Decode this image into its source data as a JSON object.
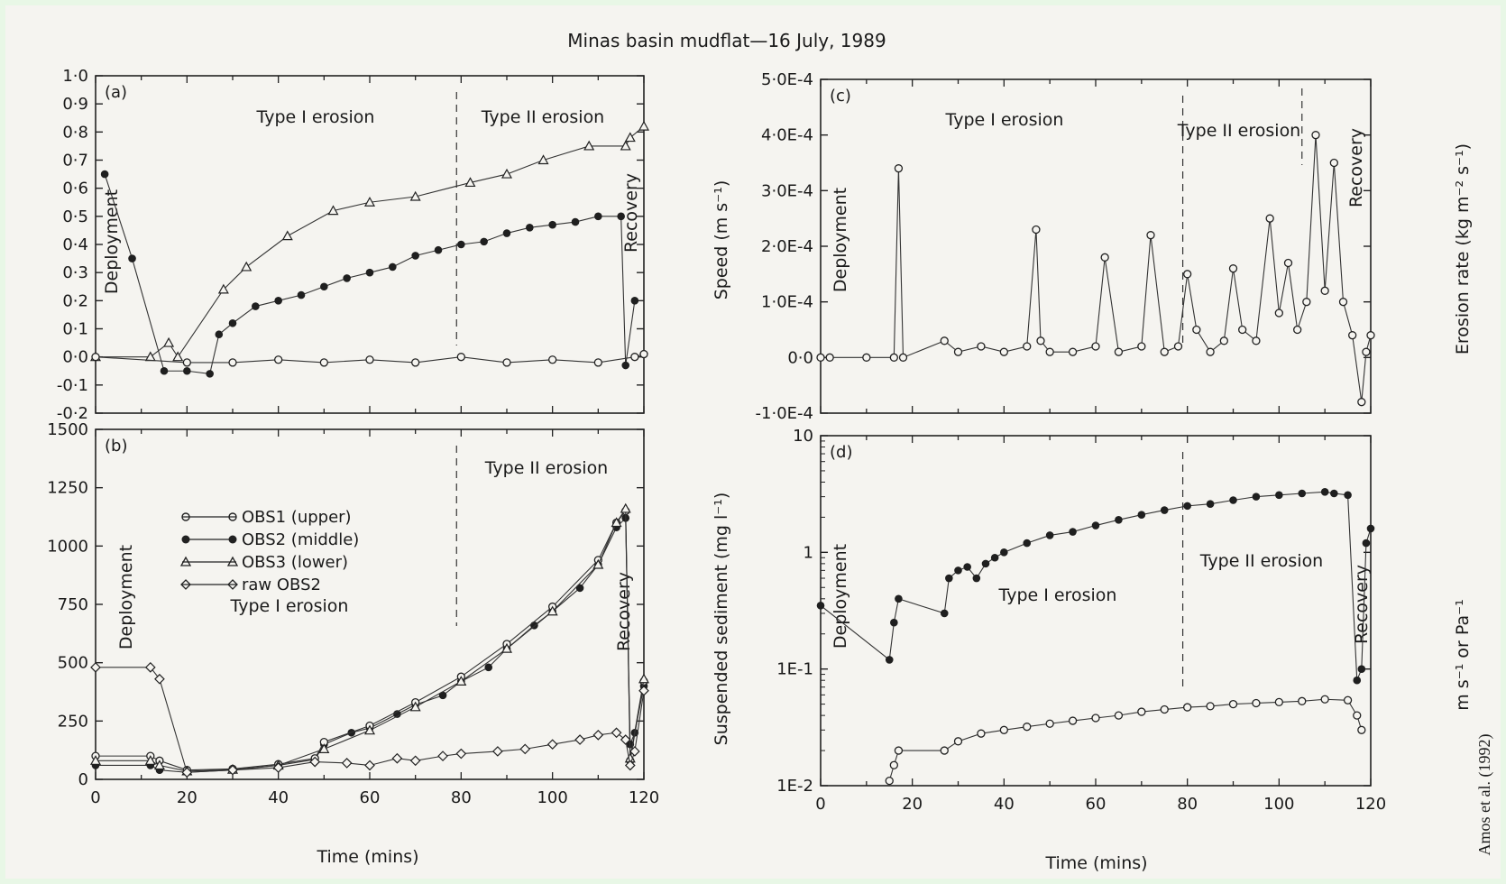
{
  "title": "Minas basin mudflat—16 July, 1989",
  "credit": "Amos et al. (1992)",
  "legend": [
    {
      "label": "OBS1 (upper)",
      "marker": "open-circle"
    },
    {
      "label": "OBS2 (middle)",
      "marker": "filled-circle"
    },
    {
      "label": "OBS3 (lower)",
      "marker": "open-triangle"
    },
    {
      "label": "raw OBS2",
      "marker": "open-diamond"
    }
  ],
  "shared_axis_labels": {
    "left_time_label": "Time (mins)",
    "right_time_label": "Time (mins)",
    "speed_label": "Speed (m s⁻¹)",
    "ssc_label": "Suspended sediment (mg l⁻¹)",
    "erosion_label": "Erosion rate (kg m⁻² s⁻¹)",
    "stress_label": "m s⁻¹ or Pa⁻¹"
  },
  "chart_data": [
    {
      "panel": "(a)",
      "type": "scatter",
      "xlim": [
        0,
        120
      ],
      "ylim": [
        -0.2,
        1.0
      ],
      "y_ticks": [
        "-0·2",
        "-0·1",
        "0·0",
        "0·1",
        "0·2",
        "0·3",
        "0·4",
        "0·5",
        "0·6",
        "0·7",
        "0·8",
        "0·9",
        "1·0"
      ],
      "y_tick_values": [
        -0.2,
        -0.1,
        0.0,
        0.1,
        0.2,
        0.3,
        0.4,
        0.5,
        0.6,
        0.7,
        0.8,
        0.9,
        1.0
      ],
      "annotations": [
        "Deployment",
        "Type I erosion",
        "Type II erosion",
        "Recovery"
      ],
      "phase_boundaries": [
        79
      ],
      "series": [
        {
          "marker": "open-triangle",
          "x": [
            0,
            12,
            16,
            18,
            28,
            33,
            42,
            52,
            60,
            70,
            82,
            90,
            98,
            108,
            116,
            117,
            120
          ],
          "y": [
            0.0,
            0.0,
            0.05,
            0.0,
            0.24,
            0.32,
            0.43,
            0.52,
            0.55,
            0.57,
            0.62,
            0.65,
            0.7,
            0.75,
            0.75,
            0.78,
            0.82
          ]
        },
        {
          "marker": "filled-circle",
          "x": [
            2,
            8,
            15,
            20,
            25,
            27,
            30,
            35,
            40,
            45,
            50,
            55,
            60,
            65,
            70,
            75,
            80,
            85,
            90,
            95,
            100,
            105,
            110,
            115,
            116,
            118
          ],
          "y": [
            0.65,
            0.35,
            -0.05,
            -0.05,
            -0.06,
            0.08,
            0.12,
            0.18,
            0.2,
            0.22,
            0.25,
            0.28,
            0.3,
            0.32,
            0.36,
            0.38,
            0.4,
            0.41,
            0.44,
            0.46,
            0.47,
            0.48,
            0.5,
            0.5,
            -0.03,
            0.2
          ]
        },
        {
          "marker": "open-circle",
          "x": [
            0,
            20,
            30,
            40,
            50,
            60,
            70,
            80,
            90,
            100,
            110,
            118,
            120
          ],
          "y": [
            0.0,
            -0.02,
            -0.02,
            -0.01,
            -0.02,
            -0.01,
            -0.02,
            0.0,
            -0.02,
            -0.01,
            -0.02,
            0.0,
            0.01
          ]
        }
      ]
    },
    {
      "panel": "(b)",
      "type": "line",
      "xlim": [
        0,
        120
      ],
      "ylim": [
        0,
        1500
      ],
      "x_ticks": [
        "0",
        "20",
        "40",
        "60",
        "80",
        "100",
        "120"
      ],
      "x_tick_values": [
        0,
        20,
        40,
        60,
        80,
        100,
        120
      ],
      "y_ticks": [
        "0",
        "250",
        "500",
        "750",
        "1000",
        "1250",
        "1500"
      ],
      "y_tick_values": [
        0,
        250,
        500,
        750,
        1000,
        1250,
        1500
      ],
      "annotations": [
        "Deployment",
        "Type I erosion",
        "Type II erosion",
        "Recovery"
      ],
      "phase_boundaries": [
        79
      ],
      "series": [
        {
          "marker": "filled-circle",
          "x": [
            0,
            12,
            14,
            20,
            30,
            40,
            48,
            50,
            56,
            60,
            66,
            70,
            76,
            80,
            86,
            90,
            96,
            100,
            106,
            110,
            114,
            116,
            117,
            118,
            120
          ],
          "y": [
            60,
            60,
            40,
            30,
            40,
            60,
            85,
            150,
            200,
            220,
            280,
            320,
            360,
            420,
            480,
            560,
            660,
            720,
            820,
            920,
            1080,
            1120,
            150,
            200,
            400
          ]
        },
        {
          "marker": "open-circle",
          "x": [
            0,
            12,
            14,
            20,
            30,
            40,
            48,
            50,
            60,
            70,
            80,
            90,
            100,
            110,
            114,
            116,
            117,
            120
          ],
          "y": [
            100,
            100,
            80,
            40,
            45,
            65,
            90,
            160,
            230,
            330,
            440,
            580,
            740,
            940,
            1100,
            1150,
            80,
            420
          ]
        },
        {
          "marker": "open-triangle",
          "x": [
            0,
            12,
            14,
            20,
            30,
            40,
            50,
            60,
            70,
            80,
            90,
            100,
            110,
            114,
            116,
            117,
            120
          ],
          "y": [
            80,
            80,
            60,
            35,
            42,
            60,
            130,
            210,
            310,
            420,
            560,
            720,
            920,
            1100,
            1160,
            90,
            430
          ]
        },
        {
          "marker": "open-diamond",
          "x": [
            0,
            12,
            14,
            20,
            30,
            40,
            48,
            55,
            60,
            66,
            70,
            76,
            80,
            88,
            94,
            100,
            106,
            110,
            114,
            116,
            117,
            118,
            120
          ],
          "y": [
            480,
            480,
            430,
            30,
            40,
            50,
            75,
            70,
            60,
            90,
            80,
            100,
            110,
            120,
            130,
            150,
            170,
            190,
            200,
            170,
            60,
            120,
            380
          ]
        }
      ]
    },
    {
      "panel": "(c)",
      "type": "line",
      "xlim": [
        0,
        120
      ],
      "ylim": [
        -0.0001,
        0.0005
      ],
      "y_ticks": [
        "-1·0E-4",
        "0·0",
        "1·0E-4",
        "2·0E-4",
        "3·0E-4",
        "4·0E-4",
        "5·0E-4"
      ],
      "y_tick_values": [
        -0.0001,
        0,
        0.0001,
        0.0002,
        0.0003,
        0.0004,
        0.0005
      ],
      "annotations": [
        "Deployment",
        "Type I erosion",
        "Type II erosion",
        "Recovery"
      ],
      "phase_boundaries": [
        79,
        105
      ],
      "series": [
        {
          "marker": "open-circle",
          "x": [
            0,
            2,
            10,
            16,
            17,
            18,
            27,
            30,
            35,
            40,
            45,
            47,
            48,
            50,
            55,
            60,
            62,
            65,
            70,
            72,
            75,
            78,
            80,
            82,
            85,
            88,
            90,
            92,
            95,
            98,
            100,
            102,
            104,
            106,
            108,
            110,
            112,
            114,
            116,
            118,
            119,
            120
          ],
          "y": [
            0,
            0,
            0,
            0,
            0.00034,
            0,
            3e-05,
            1e-05,
            2e-05,
            1e-05,
            2e-05,
            0.00023,
            3e-05,
            1e-05,
            1e-05,
            2e-05,
            0.00018,
            1e-05,
            2e-05,
            0.00022,
            1e-05,
            2e-05,
            0.00015,
            5e-05,
            1e-05,
            3e-05,
            0.00016,
            5e-05,
            3e-05,
            0.00025,
            8e-05,
            0.00017,
            5e-05,
            0.0001,
            0.0004,
            0.00012,
            0.00035,
            0.0001,
            4e-05,
            -8e-05,
            1e-05,
            4e-05
          ]
        }
      ]
    },
    {
      "panel": "(d)",
      "type": "scatter",
      "xlim": [
        0,
        120
      ],
      "ylim": [
        0.01,
        10
      ],
      "y_scale": "log",
      "x_ticks": [
        "0",
        "20",
        "40",
        "60",
        "80",
        "100",
        "120"
      ],
      "x_tick_values": [
        0,
        20,
        40,
        60,
        80,
        100,
        120
      ],
      "y_ticks": [
        "1E-2",
        "1E-1",
        "1",
        "10"
      ],
      "y_tick_values": [
        0.01,
        0.1,
        1,
        10
      ],
      "annotations": [
        "Deployment",
        "Type I erosion",
        "Type II erosion",
        "Recovery"
      ],
      "phase_boundaries": [
        79
      ],
      "series": [
        {
          "marker": "filled-circle",
          "x": [
            0,
            15,
            16,
            17,
            27,
            28,
            30,
            32,
            34,
            36,
            38,
            40,
            45,
            50,
            55,
            60,
            65,
            70,
            75,
            80,
            85,
            90,
            95,
            100,
            105,
            110,
            112,
            115,
            117,
            118,
            119,
            120
          ],
          "y": [
            0.35,
            0.12,
            0.25,
            0.4,
            0.3,
            0.6,
            0.7,
            0.75,
            0.6,
            0.8,
            0.9,
            1.0,
            1.2,
            1.4,
            1.5,
            1.7,
            1.9,
            2.1,
            2.3,
            2.5,
            2.6,
            2.8,
            3.0,
            3.1,
            3.2,
            3.3,
            3.2,
            3.1,
            0.08,
            0.1,
            1.2,
            1.6
          ]
        },
        {
          "marker": "open-circle",
          "x": [
            15,
            16,
            17,
            27,
            30,
            35,
            40,
            45,
            50,
            55,
            60,
            65,
            70,
            75,
            80,
            85,
            90,
            95,
            100,
            105,
            110,
            115,
            117,
            118
          ],
          "y": [
            0.011,
            0.015,
            0.02,
            0.02,
            0.024,
            0.028,
            0.03,
            0.032,
            0.034,
            0.036,
            0.038,
            0.04,
            0.043,
            0.045,
            0.047,
            0.048,
            0.05,
            0.051,
            0.052,
            0.053,
            0.055,
            0.054,
            0.04,
            0.03
          ]
        }
      ]
    }
  ]
}
